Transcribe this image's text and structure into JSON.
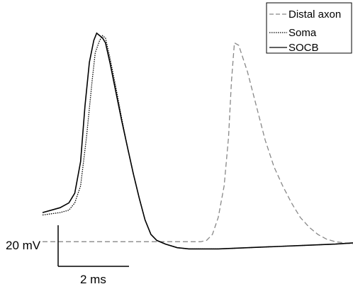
{
  "chart_data": {
    "type": "line",
    "title": "",
    "xlabel": "",
    "ylabel": "",
    "grid": false,
    "axes": false,
    "legend_position": "top-right",
    "x_unit": "ms",
    "y_unit": "mV",
    "xlim": [
      0,
      10.6
    ],
    "ylim": [
      -30,
      60
    ],
    "series": [
      {
        "name": "Distal axon",
        "style": "dashed",
        "color": "#888888",
        "x": [
          0,
          5.0,
          5.2,
          5.4,
          5.6,
          5.8,
          6.0,
          6.2,
          6.35,
          6.45,
          6.55,
          6.7,
          7.0,
          7.3,
          7.6,
          7.9,
          8.2,
          8.5,
          8.8,
          9.1,
          9.4,
          9.7,
          10.0,
          10.3,
          10.6
        ],
        "y": [
          -28,
          -28,
          -28,
          -28,
          -27.5,
          -25,
          -18,
          -5,
          15,
          38,
          54,
          53,
          42,
          28,
          14,
          3,
          -5,
          -12,
          -18,
          -22,
          -25,
          -27,
          -28,
          -28.5,
          -29
        ]
      },
      {
        "name": "Soma",
        "style": "dotted",
        "color": "#000000",
        "x": [
          0,
          0.3,
          0.6,
          0.9,
          1.1,
          1.3,
          1.5,
          1.7,
          1.8,
          1.95,
          2.05,
          2.15,
          2.3,
          2.5,
          2.7,
          2.9,
          3.1,
          3.3,
          3.5,
          3.7,
          3.9,
          4.2,
          4.6,
          5.0,
          5.5,
          6.0,
          7.0,
          8.0,
          9.0,
          10.0,
          10.6
        ],
        "y": [
          -17,
          -16.5,
          -16,
          -15,
          -12,
          -5,
          15,
          39,
          50,
          55,
          57,
          56,
          48,
          36,
          23,
          11,
          0,
          -10,
          -19,
          -25,
          -27.5,
          -29,
          -30.5,
          -31,
          -31,
          -31,
          -30.5,
          -30,
          -29.5,
          -29,
          -28.5
        ]
      },
      {
        "name": "SOCB",
        "style": "solid",
        "color": "#000000",
        "x": [
          0,
          0.3,
          0.6,
          0.9,
          1.1,
          1.3,
          1.45,
          1.6,
          1.75,
          1.85,
          1.95,
          2.05,
          2.15,
          2.3,
          2.5,
          2.7,
          2.9,
          3.1,
          3.3,
          3.5,
          3.7,
          3.9,
          4.2,
          4.6,
          5.0,
          5.5,
          6.0,
          7.0,
          8.0,
          9.0,
          10.0,
          10.6
        ],
        "y": [
          -16,
          -15,
          -14,
          -12,
          -8,
          5,
          28,
          46,
          55,
          58,
          57,
          56,
          54,
          46,
          34,
          22,
          11,
          0,
          -10,
          -19,
          -25,
          -27.5,
          -29,
          -30.5,
          -31,
          -31,
          -31,
          -30.5,
          -30,
          -29.5,
          -29,
          -28.5
        ]
      }
    ],
    "legend": [
      "Distal axon",
      "Soma",
      "SOCB"
    ],
    "scale_bar": {
      "voltage_label": "20 mV",
      "time_label": "2 ms",
      "voltage_value": 20,
      "time_value": 2
    }
  }
}
